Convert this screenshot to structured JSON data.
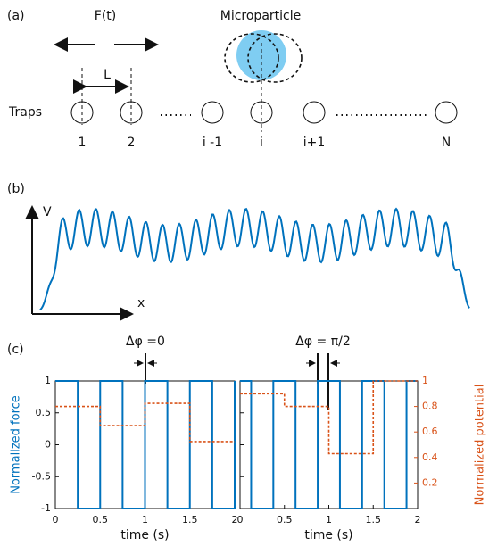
{
  "panel_a": {
    "label": "(a)",
    "force": "F(t)",
    "particle": "Microparticle",
    "spacing": "L",
    "traps": "Traps",
    "trap_labels": [
      "1",
      "2",
      "i -1",
      "i",
      "i+1",
      "N"
    ]
  },
  "panel_b": {
    "label": "(b)",
    "y_axis": "V",
    "x_axis": "x"
  },
  "panel_c": {
    "label": "(c)"
  },
  "chart_data": [
    {
      "type": "line",
      "annotation": "Δφ =0",
      "xlabel": "time (s)",
      "ylabel": "Normalized force",
      "xlim": [
        0,
        2
      ],
      "xticks": [
        0,
        0.5,
        1,
        1.5,
        2
      ],
      "ylim": [
        -1,
        1
      ],
      "yticks": [
        -1,
        -0.5,
        0,
        0.5,
        1
      ],
      "show_ytick_labels": true,
      "series": [
        {
          "color": "#0072bd",
          "x": [
            0,
            0.25,
            0.25,
            0.5,
            0.5,
            0.75,
            0.75,
            1,
            1,
            1.25,
            1.25,
            1.5,
            1.5,
            1.75,
            1.75,
            2,
            2
          ],
          "values": [
            1,
            1,
            -1,
            -1,
            1,
            1,
            -1,
            -1,
            1,
            1,
            -1,
            -1,
            1,
            1,
            -1,
            -1,
            1
          ]
        },
        {
          "color": "#d95319",
          "dashed": true,
          "x": [
            0,
            0.5,
            0.5,
            1,
            1,
            1.5,
            1.5,
            2
          ],
          "values": [
            0.6,
            0.6,
            0.3,
            0.3,
            0.65,
            0.65,
            0.05,
            0.05
          ]
        }
      ]
    },
    {
      "type": "line",
      "annotation": "Δφ = π/2",
      "xlabel": "time (s)",
      "y2label": "Normalized potential",
      "xlim": [
        0,
        2
      ],
      "xticks": [
        0,
        0.5,
        1,
        1.5,
        2
      ],
      "ylim": [
        -1,
        1
      ],
      "yticks": [
        -1,
        -0.5,
        0,
        0.5,
        1
      ],
      "show_ytick_labels": false,
      "y2lim": [
        0,
        1
      ],
      "y2ticks": [
        0.2,
        0.4,
        0.6,
        0.8,
        1
      ],
      "series": [
        {
          "color": "#0072bd",
          "x": [
            0,
            0.125,
            0.125,
            0.375,
            0.375,
            0.625,
            0.625,
            0.875,
            0.875,
            1.125,
            1.125,
            1.375,
            1.375,
            1.625,
            1.625,
            1.875,
            1.875,
            2
          ],
          "values": [
            1,
            1,
            -1,
            -1,
            1,
            1,
            -1,
            -1,
            1,
            1,
            -1,
            -1,
            1,
            1,
            -1,
            -1,
            1,
            1
          ]
        },
        {
          "color": "#d95319",
          "dashed": true,
          "axis": "y2",
          "x": [
            0,
            0.5,
            0.5,
            1,
            1,
            1.5,
            1.5,
            2
          ],
          "values": [
            0.9,
            0.9,
            0.8,
            0.8,
            0.43,
            0.43,
            1,
            1
          ]
        }
      ]
    }
  ]
}
